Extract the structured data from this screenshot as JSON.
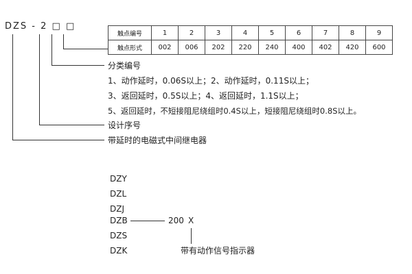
{
  "model": "DZS - 2 □ □",
  "table": {
    "rows": [
      {
        "header": "触点编号",
        "cells": [
          "1",
          "2",
          "3",
          "4",
          "5",
          "6",
          "7",
          "8",
          "9"
        ]
      },
      {
        "header": "触点形式",
        "cells": [
          "002",
          "006",
          "202",
          "220",
          "240",
          "400",
          "402",
          "420",
          "600"
        ]
      }
    ]
  },
  "labels": {
    "classification": "分类编号",
    "line1": "1、动作延时，0.06S以上；2、动作延时，0.11S以上；",
    "line2": "3、返回延时，0.5S以上；4、返回延时，1.1S以上；",
    "line3": "5、返回延时，不短接阻尼绕组时0.4S以上，短接阻尼绕组时0.8S以上。",
    "design_no": "设计序号",
    "relay_type": "带延时的电磁式中间继电器"
  },
  "series": [
    "DZY",
    "DZL",
    "DZJ",
    "DZB",
    "DZS",
    "DZK"
  ],
  "suffix": {
    "code": "200",
    "x": "X",
    "note": "带有动作信号指示器"
  }
}
